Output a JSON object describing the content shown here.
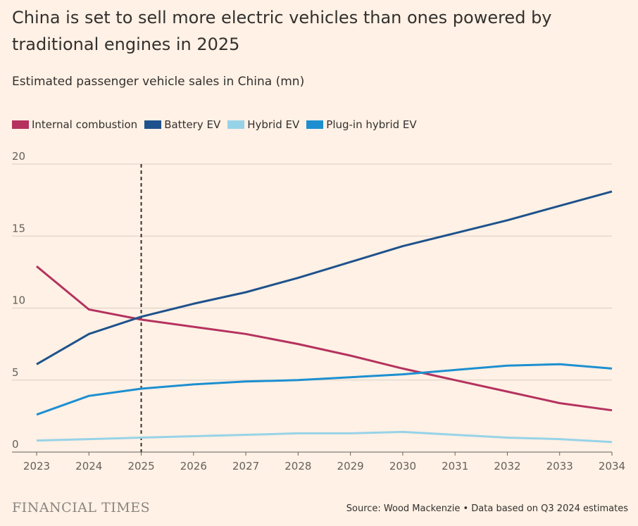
{
  "title": "China is set to sell more electric vehicles than ones powered by traditional engines in 2025",
  "subtitle": "Estimated passenger vehicle sales in China (mn)",
  "footer": {
    "brand": "FINANCIAL TIMES",
    "source": "Source: Wood Mackenzie • Data based on Q3 2024 estimates"
  },
  "chart_data": {
    "type": "line",
    "x": [
      2023,
      2024,
      2025,
      2026,
      2027,
      2028,
      2029,
      2030,
      2031,
      2032,
      2033,
      2034
    ],
    "x_ticks": [
      "2023",
      "2024",
      "2025",
      "2026",
      "2027",
      "2028",
      "2029",
      "2030",
      "2031",
      "2032",
      "2033",
      "2034"
    ],
    "y_ticks": [
      "0",
      "5",
      "10",
      "15",
      "20"
    ],
    "ylim": [
      0,
      20
    ],
    "grid": "horizontal",
    "legend": "top-left",
    "annotation_vline_x": 2025,
    "series": [
      {
        "name": "Internal combustion",
        "color": "#b5325f",
        "values": [
          12.9,
          9.9,
          9.2,
          8.7,
          8.2,
          7.5,
          6.7,
          5.8,
          5.0,
          4.2,
          3.4,
          2.9
        ]
      },
      {
        "name": "Battery EV",
        "color": "#1e528c",
        "values": [
          6.1,
          8.2,
          9.4,
          10.3,
          11.1,
          12.1,
          13.2,
          14.3,
          15.2,
          16.1,
          17.1,
          18.1
        ]
      },
      {
        "name": "Hybrid EV",
        "color": "#97d3e8",
        "values": [
          0.8,
          0.9,
          1.0,
          1.1,
          1.2,
          1.3,
          1.3,
          1.4,
          1.2,
          1.0,
          0.9,
          0.7
        ]
      },
      {
        "name": "Plug-in hybrid EV",
        "color": "#1d8fd0",
        "values": [
          2.6,
          3.9,
          4.4,
          4.7,
          4.9,
          5.0,
          5.2,
          5.4,
          5.7,
          6.0,
          6.1,
          5.8
        ]
      }
    ]
  }
}
